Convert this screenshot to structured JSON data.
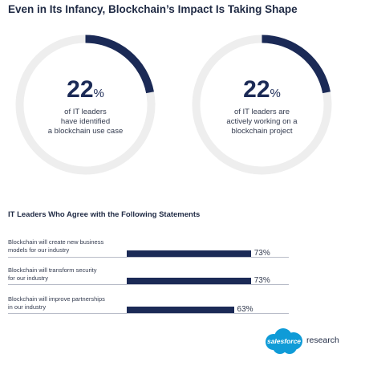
{
  "title": "Even in Its Infancy, Blockchain’s Impact Is Taking Shape",
  "colors": {
    "accent": "#1b2a56",
    "track": "#eeeeee"
  },
  "chart_data": [
    {
      "type": "pie",
      "style": "donut",
      "value": 22,
      "unit": "%",
      "caption": [
        "of IT leaders",
        "have identified",
        "a blockchain use case"
      ]
    },
    {
      "type": "pie",
      "style": "donut",
      "value": 22,
      "unit": "%",
      "caption": [
        "of IT leaders are",
        "actively working on a",
        "blockchain project"
      ]
    },
    {
      "type": "bar",
      "orientation": "horizontal",
      "title": "IT Leaders Who Agree with the Following Statements",
      "categories": [
        [
          "Blockchain will create new business",
          "models for our industry"
        ],
        [
          "Blockchain will transform security",
          "for our industry"
        ],
        [
          "Blockchain will improve partnerships",
          "in our industry"
        ]
      ],
      "values": [
        73,
        73,
        63
      ],
      "value_labels": [
        "73%",
        "73%",
        "63%"
      ],
      "xlim": [
        0,
        100
      ]
    }
  ],
  "logo": {
    "brand": "salesforce",
    "suffix": "research"
  }
}
